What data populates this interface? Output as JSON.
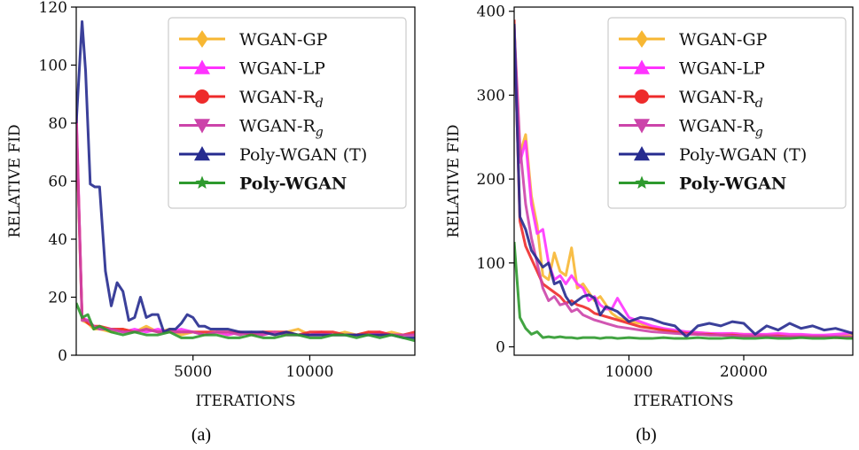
{
  "chart_data": [
    {
      "type": "line",
      "caption": "(a)",
      "xlabel": "ITERATIONS",
      "ylabel": "RELATIVE FID",
      "xlim": [
        0,
        14500
      ],
      "ylim": [
        0,
        120
      ],
      "xticks": [
        5000,
        10000
      ],
      "yticks": [
        0,
        20,
        40,
        60,
        80,
        100,
        120
      ],
      "legend_position": "top-right",
      "series": [
        {
          "name": "WGAN-GP",
          "color": "#F7B733",
          "marker": "diamond",
          "x": [
            0,
            250,
            500,
            750,
            1000,
            1500,
            2000,
            2500,
            3000,
            3500,
            4000,
            4500,
            5000,
            5500,
            6000,
            6500,
            7000,
            7500,
            8000,
            8500,
            9000,
            9500,
            10000,
            10500,
            11000,
            11500,
            12000,
            12500,
            13000,
            13500,
            14000,
            14500
          ],
          "y": [
            80,
            12,
            11,
            9,
            9,
            8,
            9,
            8,
            10,
            8,
            9,
            7,
            8,
            7,
            8,
            7,
            8,
            7,
            8,
            7,
            8,
            9,
            7,
            8,
            7,
            8,
            7,
            8,
            7,
            8,
            7,
            7
          ]
        },
        {
          "name": "WGAN-LP",
          "color": "#FF33FF",
          "marker": "triangle-up",
          "x": [
            0,
            250,
            500,
            750,
            1000,
            1500,
            2000,
            2500,
            3000,
            3500,
            4000,
            4500,
            5000,
            5500,
            6000,
            6500,
            7000,
            7500,
            8000,
            8500,
            9000,
            9500,
            10000,
            10500,
            11000,
            11500,
            12000,
            12500,
            13000,
            13500,
            14000,
            14500
          ],
          "y": [
            85,
            13,
            12,
            10,
            9,
            9,
            8,
            9,
            8,
            9,
            8,
            9,
            8,
            7,
            8,
            7,
            8,
            7,
            7,
            8,
            7,
            7,
            7,
            8,
            7,
            7,
            7,
            7,
            8,
            7,
            7,
            7
          ]
        },
        {
          "name": "WGAN-R$_d$",
          "label_main": "WGAN-R",
          "label_sub": "d",
          "color": "#EE2B2B",
          "marker": "circle",
          "x": [
            0,
            250,
            500,
            750,
            1000,
            1500,
            2000,
            2500,
            3000,
            3500,
            4000,
            4500,
            5000,
            5500,
            6000,
            6500,
            7000,
            7500,
            8000,
            8500,
            9000,
            9500,
            10000,
            10500,
            11000,
            11500,
            12000,
            12500,
            13000,
            13500,
            14000,
            14500
          ],
          "y": [
            82,
            13,
            11,
            10,
            10,
            9,
            9,
            8,
            9,
            8,
            8,
            8,
            8,
            8,
            8,
            8,
            8,
            7,
            8,
            8,
            8,
            7,
            8,
            8,
            8,
            7,
            7,
            8,
            8,
            7,
            7,
            8
          ]
        },
        {
          "name": "WGAN-R$_g$",
          "label_main": "WGAN-R",
          "label_sub": "g",
          "color": "#CC44AA",
          "marker": "triangle-down",
          "x": [
            0,
            250,
            500,
            750,
            1000,
            1500,
            2000,
            2500,
            3000,
            3500,
            4000,
            4500,
            5000,
            5500,
            6000,
            6500,
            7000,
            7500,
            8000,
            8500,
            9000,
            9500,
            10000,
            10500,
            11000,
            11500,
            12000,
            12500,
            13000,
            13500,
            14000,
            14500
          ],
          "y": [
            83,
            12,
            12,
            10,
            9,
            9,
            8,
            8,
            9,
            8,
            8,
            8,
            8,
            7,
            8,
            8,
            7,
            8,
            7,
            8,
            7,
            7,
            7,
            7,
            7,
            7,
            7,
            7,
            7,
            7,
            7,
            7
          ]
        },
        {
          "name": "Poly-WGAN (T)",
          "color": "#262B8F",
          "marker": "triangle-up",
          "x": [
            0,
            250,
            400,
            600,
            800,
            1000,
            1250,
            1500,
            1750,
            2000,
            2250,
            2500,
            2750,
            3000,
            3250,
            3500,
            3750,
            4000,
            4250,
            4500,
            4750,
            5000,
            5250,
            5500,
            5750,
            6000,
            6500,
            7000,
            7500,
            8000,
            8500,
            9000,
            9500,
            10000,
            10500,
            11000,
            11500,
            12000,
            12500,
            13000,
            13500,
            14000,
            14500
          ],
          "y": [
            80,
            115,
            98,
            59,
            58,
            58,
            29,
            17,
            25,
            22,
            12,
            13,
            20,
            13,
            14,
            14,
            8,
            9,
            9,
            11,
            14,
            13,
            10,
            10,
            9,
            9,
            9,
            8,
            8,
            8,
            7,
            8,
            7,
            7,
            7,
            7,
            7,
            7,
            7,
            7,
            7,
            6,
            6
          ]
        },
        {
          "name": "Poly-WGAN",
          "bold": true,
          "color": "#2E9A2E",
          "marker": "star",
          "x": [
            0,
            250,
            500,
            750,
            1000,
            1500,
            2000,
            2500,
            3000,
            3500,
            4000,
            4500,
            5000,
            5500,
            6000,
            6500,
            7000,
            7500,
            8000,
            8500,
            9000,
            9500,
            10000,
            10500,
            11000,
            11500,
            12000,
            12500,
            13000,
            13500,
            14000,
            14500
          ],
          "y": [
            18,
            13,
            14,
            9,
            10,
            8,
            7,
            8,
            7,
            7,
            8,
            6,
            6,
            7,
            7,
            6,
            6,
            7,
            6,
            6,
            7,
            7,
            6,
            6,
            7,
            7,
            6,
            7,
            6,
            7,
            6,
            5
          ]
        }
      ]
    },
    {
      "type": "line",
      "caption": "(b)",
      "xlabel": "ITERATIONS",
      "ylabel": "RELATIVE FID",
      "xlim": [
        0,
        29500
      ],
      "ylim": [
        -10,
        405
      ],
      "xticks": [
        10000,
        20000
      ],
      "yticks": [
        0,
        100,
        200,
        300,
        400
      ],
      "legend_position": "top-right",
      "series": [
        {
          "name": "WGAN-GP",
          "color": "#F7B733",
          "marker": "diamond",
          "x": [
            0,
            500,
            1000,
            1500,
            2000,
            2500,
            3000,
            3500,
            4000,
            4500,
            5000,
            5500,
            6000,
            6500,
            7000,
            7500,
            8000,
            8500,
            9000,
            10000,
            11000,
            12000,
            13000,
            14000,
            15000,
            16000,
            17000,
            18000,
            19000,
            20000,
            21000,
            22000,
            23000,
            24000,
            25000,
            26000,
            27000,
            28000,
            29000,
            29500
          ],
          "y": [
            380,
            230,
            253,
            180,
            145,
            85,
            80,
            112,
            90,
            85,
            118,
            70,
            75,
            65,
            55,
            60,
            50,
            40,
            35,
            30,
            28,
            22,
            20,
            18,
            18,
            17,
            16,
            15,
            16,
            15,
            15,
            14,
            15,
            14,
            14,
            13,
            13,
            13,
            14,
            14
          ]
        },
        {
          "name": "WGAN-LP",
          "label_main": "WGAN-LP",
          "color": "#FF33FF",
          "marker": "triangle-up",
          "x": [
            0,
            500,
            1000,
            1500,
            2000,
            2500,
            3000,
            3500,
            4000,
            4500,
            5000,
            5500,
            6000,
            6500,
            7000,
            7500,
            8000,
            8500,
            9000,
            10000,
            11000,
            12000,
            13000,
            14000,
            15000,
            16000,
            17000,
            18000,
            19000,
            20000,
            21000,
            22000,
            23000,
            24000,
            25000,
            26000,
            27000,
            28000,
            29000,
            29500
          ],
          "y": [
            370,
            220,
            245,
            170,
            135,
            140,
            100,
            80,
            85,
            75,
            85,
            75,
            70,
            55,
            60,
            50,
            45,
            45,
            58,
            35,
            30,
            25,
            22,
            20,
            18,
            17,
            16,
            16,
            16,
            15,
            15,
            15,
            16,
            15,
            15,
            14,
            14,
            15,
            16,
            17
          ]
        },
        {
          "name": "WGAN-R$_d$",
          "label_main": "WGAN-R",
          "label_sub": "d",
          "color": "#EE2B2B",
          "marker": "circle",
          "x": [
            0,
            500,
            1000,
            1500,
            2000,
            2500,
            3000,
            3500,
            4000,
            4500,
            5000,
            5500,
            6000,
            6500,
            7000,
            7500,
            8000,
            8500,
            9000,
            10000,
            11000,
            12000,
            13000,
            14000,
            15000,
            16000,
            17000,
            18000,
            19000,
            20000,
            21000,
            22000,
            23000,
            24000,
            25000,
            26000,
            27000,
            28000,
            29000,
            29500
          ],
          "y": [
            390,
            150,
            120,
            105,
            90,
            75,
            70,
            65,
            60,
            52,
            55,
            50,
            48,
            45,
            40,
            38,
            36,
            34,
            32,
            28,
            24,
            22,
            20,
            18,
            16,
            15,
            15,
            14,
            14,
            13,
            13,
            13,
            13,
            12,
            12,
            12,
            12,
            11,
            11,
            11
          ]
        },
        {
          "name": "WGAN-R$_g$",
          "label_main": "WGAN-R",
          "label_sub": "g",
          "color": "#CC44AA",
          "marker": "triangle-down",
          "x": [
            0,
            500,
            1000,
            1500,
            2000,
            2500,
            3000,
            3500,
            4000,
            4500,
            5000,
            5500,
            6000,
            6500,
            7000,
            7500,
            8000,
            8500,
            9000,
            10000,
            11000,
            12000,
            13000,
            14000,
            15000,
            16000,
            17000,
            18000,
            19000,
            20000,
            21000,
            22000,
            23000,
            24000,
            25000,
            26000,
            27000,
            28000,
            29000,
            29500
          ],
          "y": [
            380,
            240,
            170,
            130,
            100,
            70,
            55,
            60,
            50,
            52,
            42,
            45,
            38,
            35,
            32,
            30,
            28,
            26,
            24,
            22,
            20,
            18,
            17,
            16,
            15,
            15,
            14,
            14,
            13,
            13,
            13,
            13,
            12,
            12,
            12,
            12,
            12,
            12,
            12,
            12
          ]
        },
        {
          "name": "Poly-WGAN (T)",
          "color": "#262B8F",
          "marker": "triangle-up",
          "x": [
            0,
            500,
            1000,
            1500,
            2000,
            2500,
            3000,
            3500,
            4000,
            4500,
            5000,
            5500,
            6000,
            6500,
            7000,
            7500,
            8000,
            8500,
            9000,
            10000,
            11000,
            12000,
            13000,
            14000,
            15000,
            16000,
            17000,
            18000,
            19000,
            20000,
            21000,
            22000,
            23000,
            24000,
            25000,
            26000,
            27000,
            28000,
            29000,
            29500
          ],
          "y": [
            385,
            155,
            140,
            115,
            105,
            95,
            100,
            75,
            78,
            60,
            50,
            55,
            60,
            62,
            58,
            38,
            48,
            45,
            42,
            30,
            35,
            33,
            28,
            25,
            12,
            25,
            28,
            25,
            30,
            28,
            15,
            25,
            20,
            28,
            22,
            25,
            20,
            22,
            18,
            16
          ]
        },
        {
          "name": "Poly-WGAN",
          "bold": true,
          "color": "#2E9A2E",
          "marker": "star",
          "x": [
            0,
            500,
            1000,
            1500,
            2000,
            2500,
            3000,
            3500,
            4000,
            4500,
            5000,
            5500,
            6000,
            6500,
            7000,
            7500,
            8000,
            8500,
            9000,
            10000,
            11000,
            12000,
            13000,
            14000,
            15000,
            16000,
            17000,
            18000,
            19000,
            20000,
            21000,
            22000,
            23000,
            24000,
            25000,
            26000,
            27000,
            28000,
            29000,
            29500
          ],
          "y": [
            125,
            35,
            22,
            15,
            18,
            11,
            12,
            11,
            12,
            11,
            11,
            10,
            11,
            11,
            11,
            10,
            11,
            11,
            10,
            11,
            10,
            10,
            11,
            10,
            10,
            11,
            10,
            10,
            11,
            10,
            10,
            11,
            10,
            10,
            11,
            10,
            10,
            11,
            10,
            10
          ]
        }
      ]
    }
  ]
}
